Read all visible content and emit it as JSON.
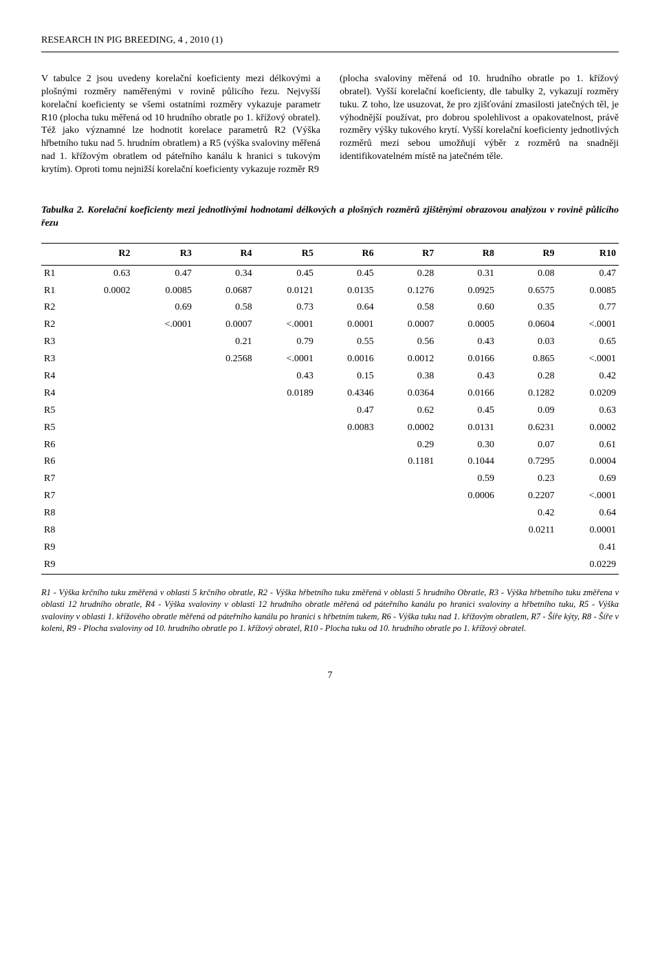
{
  "journal_header": "RESEARCH IN PIG BREEDING, 4 , 2010 (1)",
  "paragraph_left": "V tabulce 2 jsou uvedeny korelační koeficienty mezi délkovými a plošnými rozměry naměřenými v rovině půlicího řezu. Nejvyšší korelační koeficienty se všemi ostatními rozměry vykazuje parametr R10 (plocha tuku měřená od 10 hrudního obratle po 1. křížový obratel). Též jako významné lze hodnotit korelace parametrů R2 (Výška hřbetního tuku nad 5. hrudním obratlem) a R5 (výška svaloviny měřená nad 1. křížovým obratlem od páteřního kanálu k hranici s tukovým krytím). Oproti tomu nejnižší korelační koeficienty vykazuje rozměr R9",
  "paragraph_right": "(plocha svaloviny měřená od 10. hrudního obratle po 1. křížový obratel). Vyšší korelační koeficienty, dle tabulky 2, vykazují rozměry tuku. Z toho, lze usuzovat, že pro zjišťování zmasilosti jatečných těl, je výhodnější používat, pro dobrou spolehlivost a opakovatelnost, právě rozměry výšky tukového krytí. Vyšší korelační koeficienty jednotlivých rozměrů mezi sebou umožňují výběr z rozměrů na snadněji identifikovatelném místě na jatečném těle.",
  "table": {
    "caption": "Tabulka 2. Korelační koeficienty mezi jednotlivými hodnotami délkových a plošných rozměrů zjištěnými obrazovou analýzou v rovině půlicího řezu",
    "headers": [
      "",
      "R2",
      "R3",
      "R4",
      "R5",
      "R6",
      "R7",
      "R8",
      "R9",
      "R10"
    ],
    "rows": [
      {
        "label": "R1",
        "r": [
          "0.63",
          "0.47",
          "0.34",
          "0.45",
          "0.45",
          "0.28",
          "0.31",
          "0.08",
          "0.47"
        ],
        "p": [
          "0.0002",
          "0.0085",
          "0.0687",
          "0.0121",
          "0.0135",
          "0.1276",
          "0.0925",
          "0.6575",
          "0.0085"
        ]
      },
      {
        "label": "R2",
        "r": [
          "",
          "0.69",
          "0.58",
          "0.73",
          "0.64",
          "0.58",
          "0.60",
          "0.35",
          "0.77"
        ],
        "p": [
          "",
          "<.0001",
          "0.0007",
          "<.0001",
          "0.0001",
          "0.0007",
          "0.0005",
          "0.0604",
          "<.0001"
        ]
      },
      {
        "label": "R3",
        "r": [
          "",
          "",
          "0.21",
          "0.79",
          "0.55",
          "0.56",
          "0.43",
          "0.03",
          "0.65"
        ],
        "p": [
          "",
          "",
          "0.2568",
          "<.0001",
          "0.0016",
          "0.0012",
          "0.0166",
          "0.865",
          "<.0001"
        ]
      },
      {
        "label": "R4",
        "r": [
          "",
          "",
          "",
          "0.43",
          "0.15",
          "0.38",
          "0.43",
          "0.28",
          "0.42"
        ],
        "p": [
          "",
          "",
          "",
          "0.0189",
          "0.4346",
          "0.0364",
          "0.0166",
          "0.1282",
          "0.0209"
        ]
      },
      {
        "label": "R5",
        "r": [
          "",
          "",
          "",
          "",
          "0.47",
          "0.62",
          "0.45",
          "0.09",
          "0.63"
        ],
        "p": [
          "",
          "",
          "",
          "",
          "0.0083",
          "0.0002",
          "0.0131",
          "0.6231",
          "0.0002"
        ]
      },
      {
        "label": "R6",
        "r": [
          "",
          "",
          "",
          "",
          "",
          "0.29",
          "0.30",
          "0.07",
          "0.61"
        ],
        "p": [
          "",
          "",
          "",
          "",
          "",
          "0.1181",
          "0.1044",
          "0.7295",
          "0.0004"
        ]
      },
      {
        "label": "R7",
        "r": [
          "",
          "",
          "",
          "",
          "",
          "",
          "0.59",
          "0.23",
          "0.69"
        ],
        "p": [
          "",
          "",
          "",
          "",
          "",
          "",
          "0.0006",
          "0.2207",
          "<.0001"
        ]
      },
      {
        "label": "R8",
        "r": [
          "",
          "",
          "",
          "",
          "",
          "",
          "",
          "0.42",
          "0.64"
        ],
        "p": [
          "",
          "",
          "",
          "",
          "",
          "",
          "",
          "0.0211",
          "0.0001"
        ]
      },
      {
        "label": "R9",
        "r": [
          "",
          "",
          "",
          "",
          "",
          "",
          "",
          "",
          "0.41"
        ],
        "p": [
          "",
          "",
          "",
          "",
          "",
          "",
          "",
          "",
          "0.0229"
        ]
      }
    ]
  },
  "footnote": "R1 - Výška krčního tuku změřená v oblasti 5 krčního obratle, R2 - Výška hřbetního tuku změřená v oblasti 5 hrudního Obratle, R3 - Výška hřbetního tuku změřena v oblasti 12 hrudního obratle, R4 - Výška svaloviny v oblasti 12 hrudního obratle měřená od páteřního kanálu po hranici svaloviny a hřbetního tuku, R5 - Výška svaloviny v oblasti 1. křížového obratle měřená od páteřního kanálu po hranici s hřbetním tukem, R6 - Výška tuku nad 1. křížovým obratlem, R7 - Šíře kýty, R8 - Šíře v koleni, R9 - Plocha svaloviny od 10. hrudního obratle po 1. křížový obratel, R10 - Plocha tuku od 10. hrudního obratle po 1. křížový obratel.",
  "page_number": "7",
  "styling": {
    "body_font": "Times New Roman",
    "body_font_size_pt": 11,
    "text_color": "#000000",
    "background_color": "#ffffff",
    "table_border_color": "#000000",
    "caption_style": "italic bold",
    "footnote_style": "italic",
    "footnote_font_size_pt": 10
  }
}
